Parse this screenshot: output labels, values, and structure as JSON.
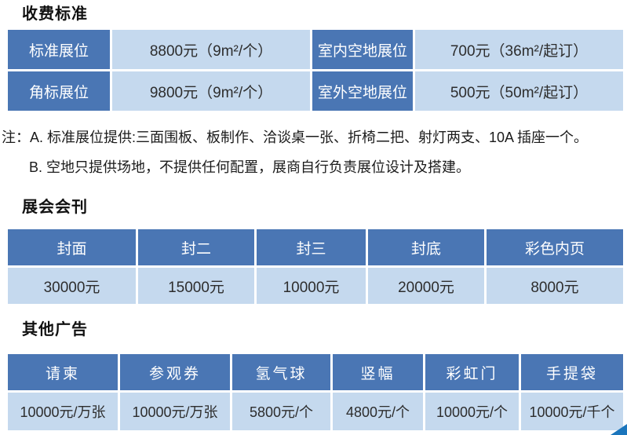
{
  "colors": {
    "header_blue": "#4a76b4",
    "cell_light_blue": "#c5d9ee",
    "corner_triangle_blue": "#1a75bc"
  },
  "fees": {
    "title": "收费标准",
    "rows": [
      {
        "label1": "标准展位",
        "value1": "8800元（9m²/个）",
        "label2": "室内空地展位",
        "value2": "700元（36m²/起订）"
      },
      {
        "label1": "角标展位",
        "value1": "9800元（9m²/个）",
        "label2": "室外空地展位",
        "value2": "500元（50m²/起订）"
      }
    ],
    "note_a": "注：A. 标准展位提供:三面围板、板制作、洽谈桌一张、折椅二把、射灯两支、10A 插座一个。",
    "note_b": "B. 空地只提供场地，不提供任何配置，展商自行负责展位设计及搭建。"
  },
  "journal": {
    "title": "展会会刊",
    "headers": [
      "封面",
      "封二",
      "封三",
      "封底",
      "彩色内页"
    ],
    "values": [
      "30000元",
      "15000元",
      "10000元",
      "20000元",
      "8000元"
    ]
  },
  "ads": {
    "title": "其他广告",
    "headers": [
      "请柬",
      "参观券",
      "氢气球",
      "竖幅",
      "彩虹门",
      "手提袋"
    ],
    "values": [
      "10000元/万张",
      "10000元/万张",
      "5800元/个",
      "4800元/个",
      "10000元/个",
      "10000元/千个"
    ]
  }
}
